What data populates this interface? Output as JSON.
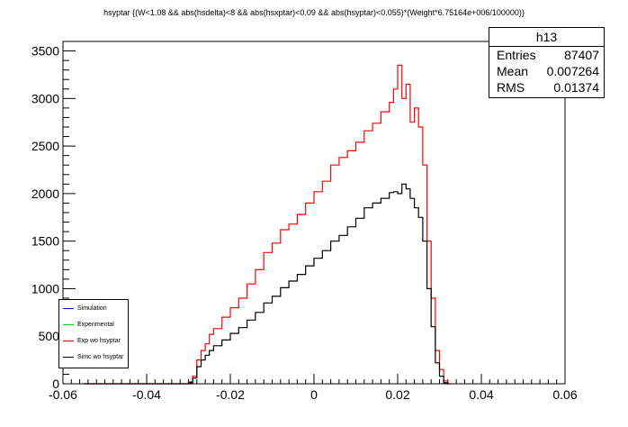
{
  "title": "hsyptar {(W<1.08 && abs(hsdelta)<8 && abs(hsxptar)<0.09 && abs(hsyptar)<0.055)*(Weight*6.75164e+006/100000)}",
  "stats": {
    "name": "h13",
    "rows": [
      {
        "label": "Entries",
        "value": "87407"
      },
      {
        "label": "Mean",
        "value": "0.007264"
      },
      {
        "label": "RMS",
        "value": "0.01374"
      }
    ]
  },
  "legend": [
    {
      "label": "Simulation",
      "color": "#0000ff"
    },
    {
      "label": "Experimental",
      "color": "#00cc00"
    },
    {
      "label": "Exp wo hsyptar",
      "color": "#ff0000"
    },
    {
      "label": "Simc wo hsyptar",
      "color": "#000000"
    }
  ],
  "chart_data": {
    "type": "line",
    "title": "hsyptar {(W<1.08 && abs(hsdelta)<8 && abs(hsxptar)<0.09 && abs(hsyptar)<0.055)*(Weight*6.75164e+006/100000)}",
    "xlabel": "",
    "ylabel": "",
    "xlim": [
      -0.06,
      0.06
    ],
    "ylim": [
      0,
      3600
    ],
    "x_ticks": [
      "-0.06",
      "-0.04",
      "-0.02",
      "0",
      "0.02",
      "0.04",
      "0.06"
    ],
    "y_ticks": [
      "0",
      "500",
      "1000",
      "1500",
      "2000",
      "2500",
      "3000",
      "3500"
    ],
    "series": [
      {
        "name": "Exp wo hsyptar",
        "color": "#ff0000",
        "x": [
          -0.055,
          -0.05,
          -0.045,
          -0.04,
          -0.035,
          -0.031,
          -0.03,
          -0.029,
          -0.028,
          -0.027,
          -0.026,
          -0.025,
          -0.024,
          -0.022,
          -0.02,
          -0.018,
          -0.016,
          -0.014,
          -0.012,
          -0.01,
          -0.008,
          -0.006,
          -0.004,
          -0.002,
          0.0,
          0.002,
          0.004,
          0.006,
          0.008,
          0.01,
          0.012,
          0.014,
          0.016,
          0.018,
          0.019,
          0.02,
          0.021,
          0.022,
          0.023,
          0.024,
          0.025,
          0.026,
          0.027,
          0.028,
          0.029,
          0.03,
          0.031,
          0.032
        ],
        "values": [
          0,
          0,
          0,
          0,
          0,
          0,
          20,
          80,
          250,
          350,
          420,
          520,
          580,
          700,
          800,
          900,
          1050,
          1200,
          1380,
          1480,
          1620,
          1680,
          1780,
          1900,
          2020,
          2130,
          2300,
          2380,
          2450,
          2540,
          2660,
          2740,
          2860,
          2960,
          3100,
          3350,
          3000,
          3150,
          2750,
          2900,
          2700,
          2300,
          1500,
          900,
          350,
          150,
          30,
          0
        ]
      },
      {
        "name": "Simc wo hsyptar",
        "color": "#000000",
        "x": [
          -0.055,
          -0.05,
          -0.045,
          -0.04,
          -0.035,
          -0.031,
          -0.03,
          -0.029,
          -0.028,
          -0.027,
          -0.026,
          -0.025,
          -0.024,
          -0.022,
          -0.02,
          -0.018,
          -0.016,
          -0.014,
          -0.012,
          -0.01,
          -0.008,
          -0.006,
          -0.004,
          -0.002,
          0.0,
          0.002,
          0.004,
          0.006,
          0.008,
          0.01,
          0.012,
          0.014,
          0.016,
          0.018,
          0.019,
          0.02,
          0.021,
          0.022,
          0.023,
          0.024,
          0.025,
          0.026,
          0.027,
          0.028,
          0.029,
          0.03,
          0.031,
          0.032
        ],
        "values": [
          0,
          0,
          0,
          0,
          0,
          0,
          10,
          60,
          180,
          250,
          300,
          350,
          400,
          460,
          530,
          590,
          670,
          750,
          850,
          920,
          1010,
          1080,
          1150,
          1240,
          1320,
          1400,
          1500,
          1560,
          1650,
          1740,
          1850,
          1900,
          1950,
          2010,
          2020,
          2000,
          2100,
          2050,
          1950,
          1850,
          1750,
          1500,
          1000,
          600,
          220,
          80,
          10,
          0
        ]
      }
    ]
  }
}
